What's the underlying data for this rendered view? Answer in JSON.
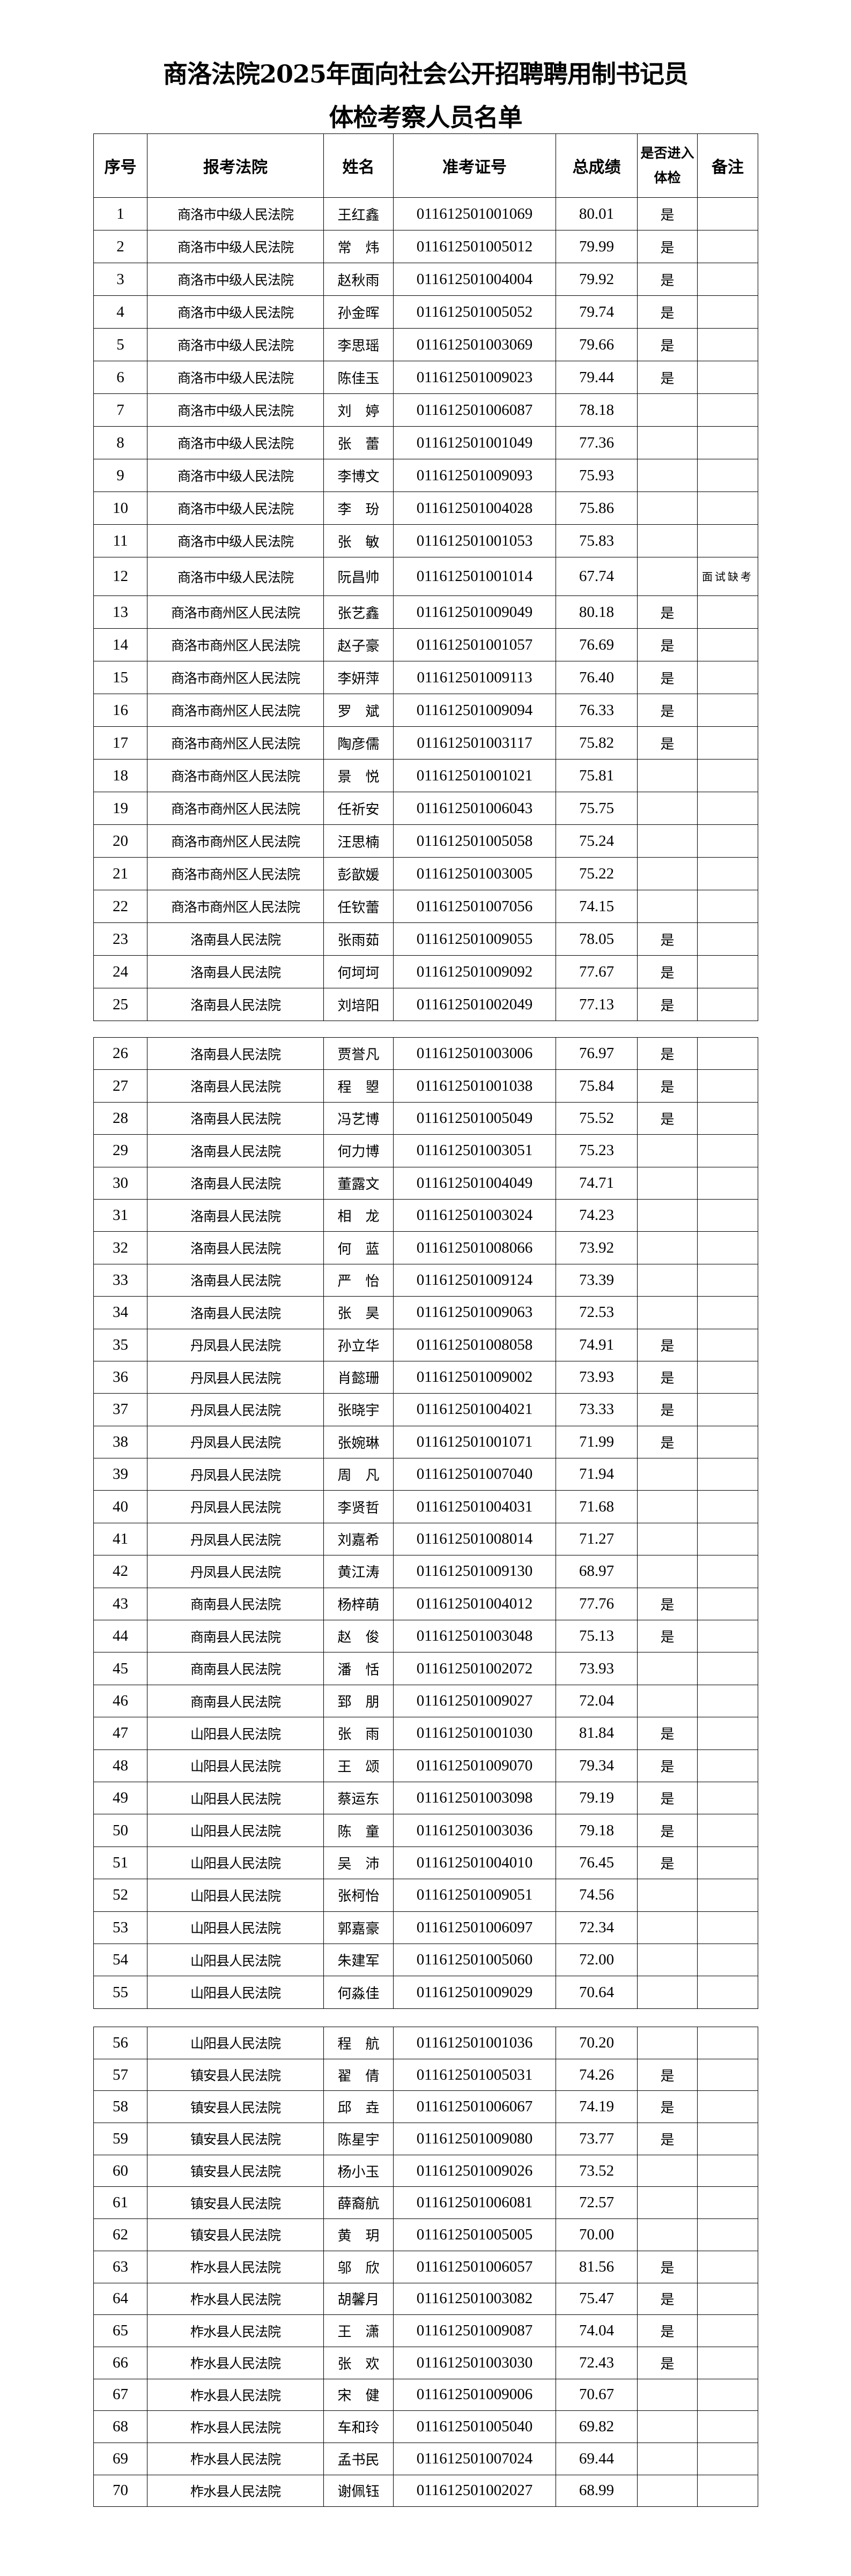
{
  "title": {
    "line1": "商洛法院2025年面向社会公开招聘聘用制书记员",
    "line2": "体检考察人员名单"
  },
  "columns": [
    "序号",
    "报考法院",
    "姓名",
    "准考证号",
    "总成绩",
    "是否进入体检",
    "备注"
  ],
  "pages": [
    {
      "rows": [
        [
          "1",
          "商洛市中级人民法院",
          "王红鑫",
          "011612501001069",
          "80.01",
          "是",
          ""
        ],
        [
          "2",
          "商洛市中级人民法院",
          "常　炜",
          "011612501005012",
          "79.99",
          "是",
          ""
        ],
        [
          "3",
          "商洛市中级人民法院",
          "赵秋雨",
          "011612501004004",
          "79.92",
          "是",
          ""
        ],
        [
          "4",
          "商洛市中级人民法院",
          "孙金晖",
          "011612501005052",
          "79.74",
          "是",
          ""
        ],
        [
          "5",
          "商洛市中级人民法院",
          "李思瑶",
          "011612501003069",
          "79.66",
          "是",
          ""
        ],
        [
          "6",
          "商洛市中级人民法院",
          "陈佳玉",
          "011612501009023",
          "79.44",
          "是",
          ""
        ],
        [
          "7",
          "商洛市中级人民法院",
          "刘　婷",
          "011612501006087",
          "78.18",
          "",
          ""
        ],
        [
          "8",
          "商洛市中级人民法院",
          "张　蕾",
          "011612501001049",
          "77.36",
          "",
          ""
        ],
        [
          "9",
          "商洛市中级人民法院",
          "李博文",
          "011612501009093",
          "75.93",
          "",
          ""
        ],
        [
          "10",
          "商洛市中级人民法院",
          "李　玢",
          "011612501004028",
          "75.86",
          "",
          ""
        ],
        [
          "11",
          "商洛市中级人民法院",
          "张　敏",
          "011612501001053",
          "75.83",
          "",
          ""
        ],
        [
          "12",
          "商洛市中级人民法院",
          "阮昌帅",
          "011612501001014",
          "67.74",
          "",
          "面试缺考"
        ],
        [
          "13",
          "商洛市商州区人民法院",
          "张艺鑫",
          "011612501009049",
          "80.18",
          "是",
          ""
        ],
        [
          "14",
          "商洛市商州区人民法院",
          "赵子豪",
          "011612501001057",
          "76.69",
          "是",
          ""
        ],
        [
          "15",
          "商洛市商州区人民法院",
          "李妍萍",
          "011612501009113",
          "76.40",
          "是",
          ""
        ],
        [
          "16",
          "商洛市商州区人民法院",
          "罗　斌",
          "011612501009094",
          "76.33",
          "是",
          ""
        ],
        [
          "17",
          "商洛市商州区人民法院",
          "陶彦儒",
          "011612501003117",
          "75.82",
          "是",
          ""
        ],
        [
          "18",
          "商洛市商州区人民法院",
          "景　悦",
          "011612501001021",
          "75.81",
          "",
          ""
        ],
        [
          "19",
          "商洛市商州区人民法院",
          "任祈安",
          "011612501006043",
          "75.75",
          "",
          ""
        ],
        [
          "20",
          "商洛市商州区人民法院",
          "汪思楠",
          "011612501005058",
          "75.24",
          "",
          ""
        ],
        [
          "21",
          "商洛市商州区人民法院",
          "彭歆媛",
          "011612501003005",
          "75.22",
          "",
          ""
        ],
        [
          "22",
          "商洛市商州区人民法院",
          "任钦蕾",
          "011612501007056",
          "74.15",
          "",
          ""
        ],
        [
          "23",
          "洛南县人民法院",
          "张雨茹",
          "011612501009055",
          "78.05",
          "是",
          ""
        ],
        [
          "24",
          "洛南县人民法院",
          "何坷坷",
          "011612501009092",
          "77.67",
          "是",
          ""
        ],
        [
          "25",
          "洛南县人民法院",
          "刘培阳",
          "011612501002049",
          "77.13",
          "是",
          ""
        ]
      ]
    },
    {
      "rows": [
        [
          "26",
          "洛南县人民法院",
          "贾誉凡",
          "011612501003006",
          "76.97",
          "是",
          ""
        ],
        [
          "27",
          "洛南县人民法院",
          "程　曌",
          "011612501001038",
          "75.84",
          "是",
          ""
        ],
        [
          "28",
          "洛南县人民法院",
          "冯艺博",
          "011612501005049",
          "75.52",
          "是",
          ""
        ],
        [
          "29",
          "洛南县人民法院",
          "何力博",
          "011612501003051",
          "75.23",
          "",
          ""
        ],
        [
          "30",
          "洛南县人民法院",
          "董露文",
          "011612501004049",
          "74.71",
          "",
          ""
        ],
        [
          "31",
          "洛南县人民法院",
          "相　龙",
          "011612501003024",
          "74.23",
          "",
          ""
        ],
        [
          "32",
          "洛南县人民法院",
          "何　蓝",
          "011612501008066",
          "73.92",
          "",
          ""
        ],
        [
          "33",
          "洛南县人民法院",
          "严　怡",
          "011612501009124",
          "73.39",
          "",
          ""
        ],
        [
          "34",
          "洛南县人民法院",
          "张　昊",
          "011612501009063",
          "72.53",
          "",
          ""
        ],
        [
          "35",
          "丹凤县人民法院",
          "孙立华",
          "011612501008058",
          "74.91",
          "是",
          ""
        ],
        [
          "36",
          "丹凤县人民法院",
          "肖懿珊",
          "011612501009002",
          "73.93",
          "是",
          ""
        ],
        [
          "37",
          "丹凤县人民法院",
          "张晓宇",
          "011612501004021",
          "73.33",
          "是",
          ""
        ],
        [
          "38",
          "丹凤县人民法院",
          "张婉琳",
          "011612501001071",
          "71.99",
          "是",
          ""
        ],
        [
          "39",
          "丹凤县人民法院",
          "周　凡",
          "011612501007040",
          "71.94",
          "",
          ""
        ],
        [
          "40",
          "丹凤县人民法院",
          "李贤哲",
          "011612501004031",
          "71.68",
          "",
          ""
        ],
        [
          "41",
          "丹凤县人民法院",
          "刘嘉希",
          "011612501008014",
          "71.27",
          "",
          ""
        ],
        [
          "42",
          "丹凤县人民法院",
          "黄江涛",
          "011612501009130",
          "68.97",
          "",
          ""
        ],
        [
          "43",
          "商南县人民法院",
          "杨梓萌",
          "011612501004012",
          "77.76",
          "是",
          ""
        ],
        [
          "44",
          "商南县人民法院",
          "赵　俊",
          "011612501003048",
          "75.13",
          "是",
          ""
        ],
        [
          "45",
          "商南县人民法院",
          "潘　恬",
          "011612501002072",
          "73.93",
          "",
          ""
        ],
        [
          "46",
          "商南县人民法院",
          "郅　朋",
          "011612501009027",
          "72.04",
          "",
          ""
        ],
        [
          "47",
          "山阳县人民法院",
          "张　雨",
          "011612501001030",
          "81.84",
          "是",
          ""
        ],
        [
          "48",
          "山阳县人民法院",
          "王　颂",
          "011612501009070",
          "79.34",
          "是",
          ""
        ],
        [
          "49",
          "山阳县人民法院",
          "蔡运东",
          "011612501003098",
          "79.19",
          "是",
          ""
        ],
        [
          "50",
          "山阳县人民法院",
          "陈　童",
          "011612501003036",
          "79.18",
          "是",
          ""
        ],
        [
          "51",
          "山阳县人民法院",
          "吴　沛",
          "011612501004010",
          "76.45",
          "是",
          ""
        ],
        [
          "52",
          "山阳县人民法院",
          "张柯怡",
          "011612501009051",
          "74.56",
          "",
          ""
        ],
        [
          "53",
          "山阳县人民法院",
          "郭嘉豪",
          "011612501006097",
          "72.34",
          "",
          ""
        ],
        [
          "54",
          "山阳县人民法院",
          "朱建军",
          "011612501005060",
          "72.00",
          "",
          ""
        ],
        [
          "55",
          "山阳县人民法院",
          "何淼佳",
          "011612501009029",
          "70.64",
          "",
          ""
        ]
      ]
    },
    {
      "rows": [
        [
          "56",
          "山阳县人民法院",
          "程　航",
          "011612501001036",
          "70.20",
          "",
          ""
        ],
        [
          "57",
          "镇安县人民法院",
          "翟　倩",
          "011612501005031",
          "74.26",
          "是",
          ""
        ],
        [
          "58",
          "镇安县人民法院",
          "邱　垚",
          "011612501006067",
          "74.19",
          "是",
          ""
        ],
        [
          "59",
          "镇安县人民法院",
          "陈星宇",
          "011612501009080",
          "73.77",
          "是",
          ""
        ],
        [
          "60",
          "镇安县人民法院",
          "杨小玉",
          "011612501009026",
          "73.52",
          "",
          ""
        ],
        [
          "61",
          "镇安县人民法院",
          "薛裔航",
          "011612501006081",
          "72.57",
          "",
          ""
        ],
        [
          "62",
          "镇安县人民法院",
          "黄　玥",
          "011612501005005",
          "70.00",
          "",
          ""
        ],
        [
          "63",
          "柞水县人民法院",
          "邬　欣",
          "011612501006057",
          "81.56",
          "是",
          ""
        ],
        [
          "64",
          "柞水县人民法院",
          "胡馨月",
          "011612501003082",
          "75.47",
          "是",
          ""
        ],
        [
          "65",
          "柞水县人民法院",
          "王　潇",
          "011612501009087",
          "74.04",
          "是",
          ""
        ],
        [
          "66",
          "柞水县人民法院",
          "张　欢",
          "011612501003030",
          "72.43",
          "是",
          ""
        ],
        [
          "67",
          "柞水县人民法院",
          "宋　健",
          "011612501009006",
          "70.67",
          "",
          ""
        ],
        [
          "68",
          "柞水县人民法院",
          "车和玲",
          "011612501005040",
          "69.82",
          "",
          ""
        ],
        [
          "69",
          "柞水县人民法院",
          "孟书民",
          "011612501007024",
          "69.44",
          "",
          ""
        ],
        [
          "70",
          "柞水县人民法院",
          "谢佩钰",
          "011612501002027",
          "68.99",
          "",
          ""
        ]
      ]
    }
  ]
}
